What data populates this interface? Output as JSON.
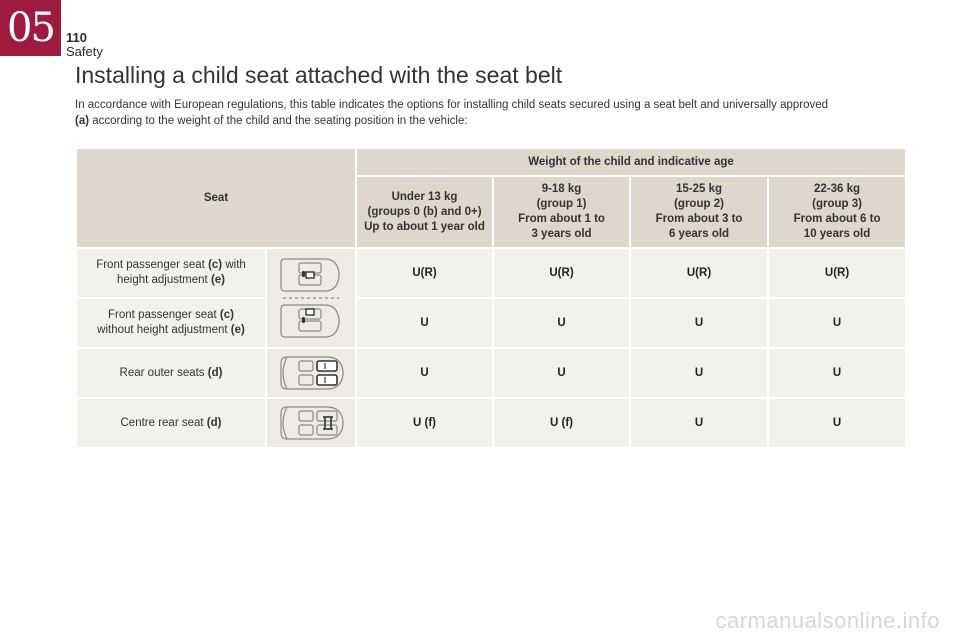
{
  "chapter": {
    "number": "05",
    "page": "110",
    "section": "Safety"
  },
  "title": "Installing a child seat attached with the seat belt",
  "intro": {
    "part1": "In accordance with European regulations, this table indicates the options for installing child seats secured using a seat belt and universally approved",
    "note": "(a)",
    "part2": " according to the weight of the child and the seating position in the vehicle:"
  },
  "table": {
    "seat_header": "Seat",
    "weight_header": "Weight of the child and indicative age",
    "columns": [
      {
        "weight": "Under 13 kg",
        "group_pre": "(groups 0 ",
        "group_note": "(b)",
        "group_post": " and 0+)",
        "age": "Up to about 1 year old"
      },
      {
        "weight": "9-18 kg",
        "group": "(group 1)",
        "age_1": "From about 1 to",
        "age_2": "3 years old"
      },
      {
        "weight": "15-25 kg",
        "group": "(group 2)",
        "age_1": "From about 3 to",
        "age_2": "6 years old"
      },
      {
        "weight": "22-36 kg",
        "group": "(group 3)",
        "age_1": "From about 6 to",
        "age_2": "10 years old"
      }
    ],
    "rows": [
      {
        "label_1a": "Front passenger seat ",
        "label_1b": "(c)",
        "label_1c": " with",
        "label_2a": "height adjustment ",
        "label_2b": "(e)",
        "icon": "car-front-seat-icon",
        "values": [
          "U(R)",
          "U(R)",
          "U(R)",
          "U(R)"
        ]
      },
      {
        "label_1a": "Front passenger seat ",
        "label_1b": "(c)",
        "label_1c": "",
        "label_2a": "without height adjustment ",
        "label_2b": "(e)",
        "icon": "car-front-seat-icon",
        "values": [
          "U",
          "U",
          "U",
          "U"
        ]
      },
      {
        "label_1a": "Rear outer seats ",
        "label_1b": "(d)",
        "icon": "car-rear-outer-seats-icon",
        "values": [
          "U",
          "U",
          "U",
          "U"
        ]
      },
      {
        "label_1a": "Centre rear seat ",
        "label_1b": "(d)",
        "icon": "car-centre-rear-seat-icon",
        "values": [
          "U (f)",
          "U (f)",
          "U",
          "U"
        ]
      }
    ]
  },
  "watermark": "carmanualsonline.info"
}
